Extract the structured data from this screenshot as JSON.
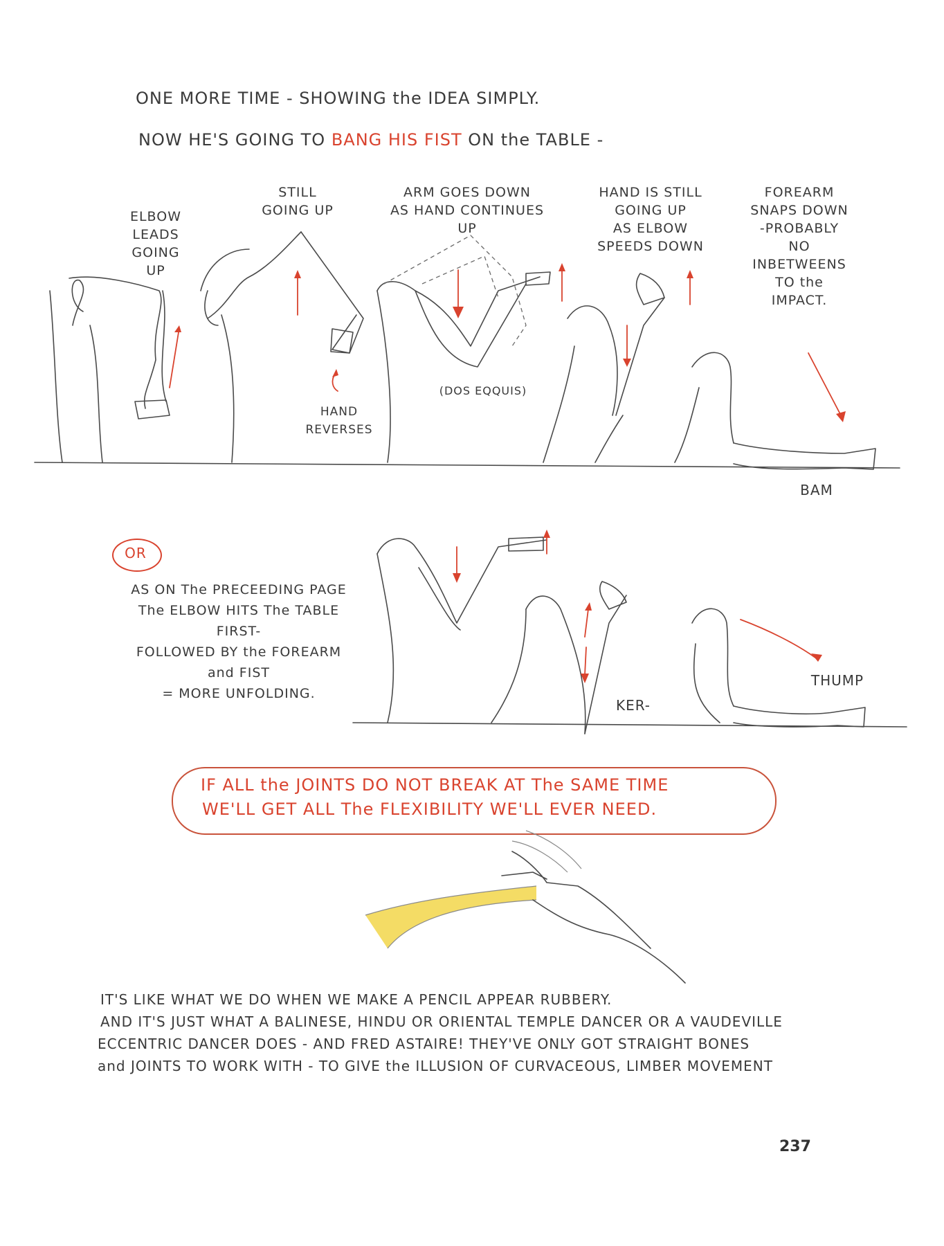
{
  "header": {
    "line1": "ONE MORE TIME - SHOWING the IDEA SIMPLY.",
    "line2_a": "NOW HE'S GOING TO ",
    "line2_red": "BANG HIS FIST",
    "line2_b": " ON the TABLE -"
  },
  "sequence1": {
    "labels": [
      "ELBOW\nLEADS\nGOING\nUP",
      "STILL\nGOING UP",
      "ARM GOES DOWN\nAS HAND CONTINUES UP",
      "HAND IS STILL\nGOING UP\nAS ELBOW\nSPEEDS DOWN",
      "FOREARM\nSNAPS DOWN\n-PROBABLY\nNO\nINBETWEENS\nTO the\nIMPACT."
    ],
    "hand_reverses": "HAND\nREVERSES",
    "dos_equis": "(DOS EQQUIS)",
    "bam": "BAM"
  },
  "sequence2": {
    "or_label": "OR",
    "note": "AS ON The PRECEEDING PAGE\nThe ELBOW HITS The TABLE\nFIRST-\nFOLLOWED BY the FOREARM\nand FIST\n= MORE UNFOLDING.",
    "ker": "KER-",
    "thump": "THUMP"
  },
  "callout": {
    "line1": "IF ALL the JOINTS DO NOT BREAK AT The SAME TIME",
    "line2": "WE'LL GET ALL The FLEXIBILITY WE'LL EVER NEED."
  },
  "footer_text": [
    "IT'S LIKE WHAT WE DO WHEN WE MAKE A PENCIL APPEAR RUBBERY.",
    "AND IT'S JUST WHAT A BALINESE, HINDU OR ORIENTAL TEMPLE DANCER OR A VAUDEVILLE",
    "ECCENTRIC DANCER DOES - AND FRED ASTAIRE!  THEY'VE ONLY GOT STRAIGHT BONES",
    "and JOINTS TO WORK WITH - TO GIVE the ILLUSION OF CURVACEOUS, LIMBER MOVEMENT"
  ],
  "page_number": "237",
  "colors": {
    "accent_red": "#d9432e",
    "pencil_yellow": "#f2d64a"
  }
}
